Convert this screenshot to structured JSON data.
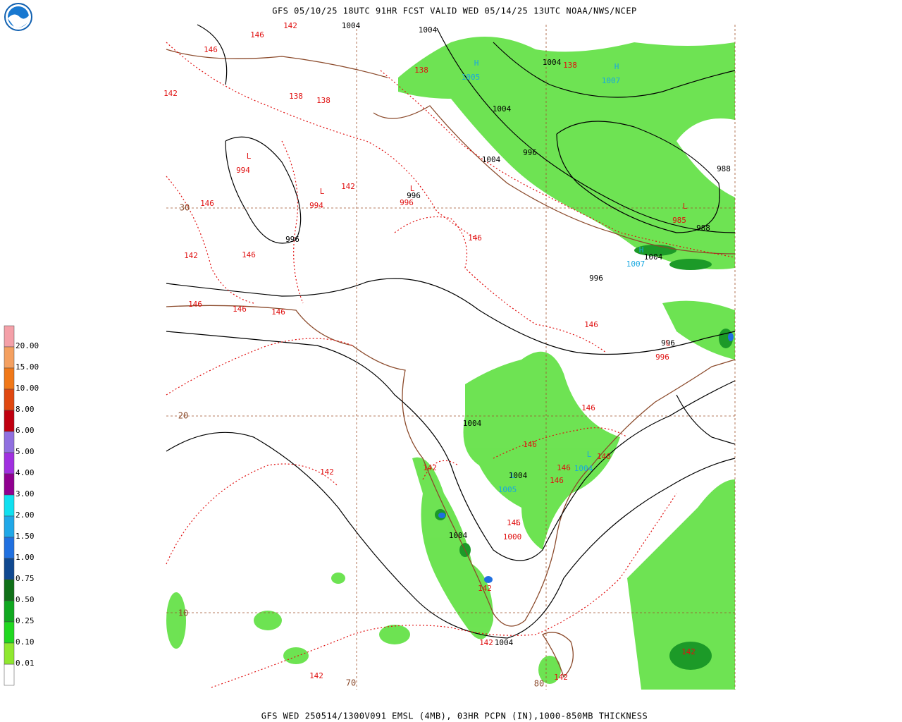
{
  "header": {
    "title": "GFS 05/10/25 18UTC 91HR FCST VALID WED 05/14/25 13UTC NOAA/NWS/NCEP"
  },
  "footer": {
    "text": "GFS WED 250514/1300V091 EMSL (4MB), 03HR PCPN (IN),1000-850MB THICKNESS"
  },
  "legend": [
    {
      "label": "20.00",
      "color": "#f4a0a8"
    },
    {
      "label": "15.00",
      "color": "#f4a060"
    },
    {
      "label": "10.00",
      "color": "#f07818"
    },
    {
      "label": "8.00",
      "color": "#e04810"
    },
    {
      "label": "6.00",
      "color": "#c00010"
    },
    {
      "label": "5.00",
      "color": "#9070e0"
    },
    {
      "label": "4.00",
      "color": "#a030e0"
    },
    {
      "label": "3.00",
      "color": "#900090"
    },
    {
      "label": "2.00",
      "color": "#10e0f0"
    },
    {
      "label": "1.50",
      "color": "#20a8e8"
    },
    {
      "label": "1.00",
      "color": "#2070e0"
    },
    {
      "label": "0.75",
      "color": "#104890"
    },
    {
      "label": "0.50",
      "color": "#107018"
    },
    {
      "label": "0.25",
      "color": "#10a820"
    },
    {
      "label": "0.10",
      "color": "#20d820"
    },
    {
      "label": "0.01",
      "color": "#90e830"
    }
  ],
  "map": {
    "pressure_labels": [
      "1004",
      "1004",
      "1004",
      "1004",
      "1004",
      "996",
      "988",
      "996",
      "996",
      "988",
      "1004",
      "996",
      "996",
      "1004",
      "1004",
      "1004",
      "1004"
    ],
    "thickness_labels": [
      "142",
      "146",
      "146",
      "138",
      "138",
      "138",
      "138",
      "142",
      "142",
      "146",
      "142",
      "146",
      "146",
      "146",
      "146",
      "146",
      "146",
      "146",
      "146",
      "142",
      "142",
      "146",
      "146",
      "146",
      "146",
      "142",
      "142",
      "142",
      "142",
      "142"
    ],
    "centers": [
      {
        "symbol": "H",
        "value": "1005",
        "color": "#18a8e0"
      },
      {
        "symbol": "H",
        "value": "1007",
        "color": "#18a8e0"
      },
      {
        "symbol": "L",
        "value": "994",
        "color": "#e01010"
      },
      {
        "symbol": "L",
        "value": "994",
        "color": "#e01010"
      },
      {
        "symbol": "L",
        "value": "996",
        "color": "#e01010"
      },
      {
        "symbol": "L",
        "value": "985",
        "color": "#e01010"
      },
      {
        "symbol": "H",
        "value": "1007",
        "color": "#18a8e0"
      },
      {
        "symbol": "L",
        "value": "996",
        "color": "#e01010"
      },
      {
        "symbol": "L",
        "value": "1004",
        "color": "#18a8e0"
      },
      {
        "symbol": "L",
        "value": "1005",
        "color": "#18a8e0"
      },
      {
        "symbol": "L",
        "value": "1000",
        "color": "#e01010"
      }
    ],
    "grid_labels": [
      "30",
      "20",
      "10",
      "70",
      "80"
    ]
  }
}
